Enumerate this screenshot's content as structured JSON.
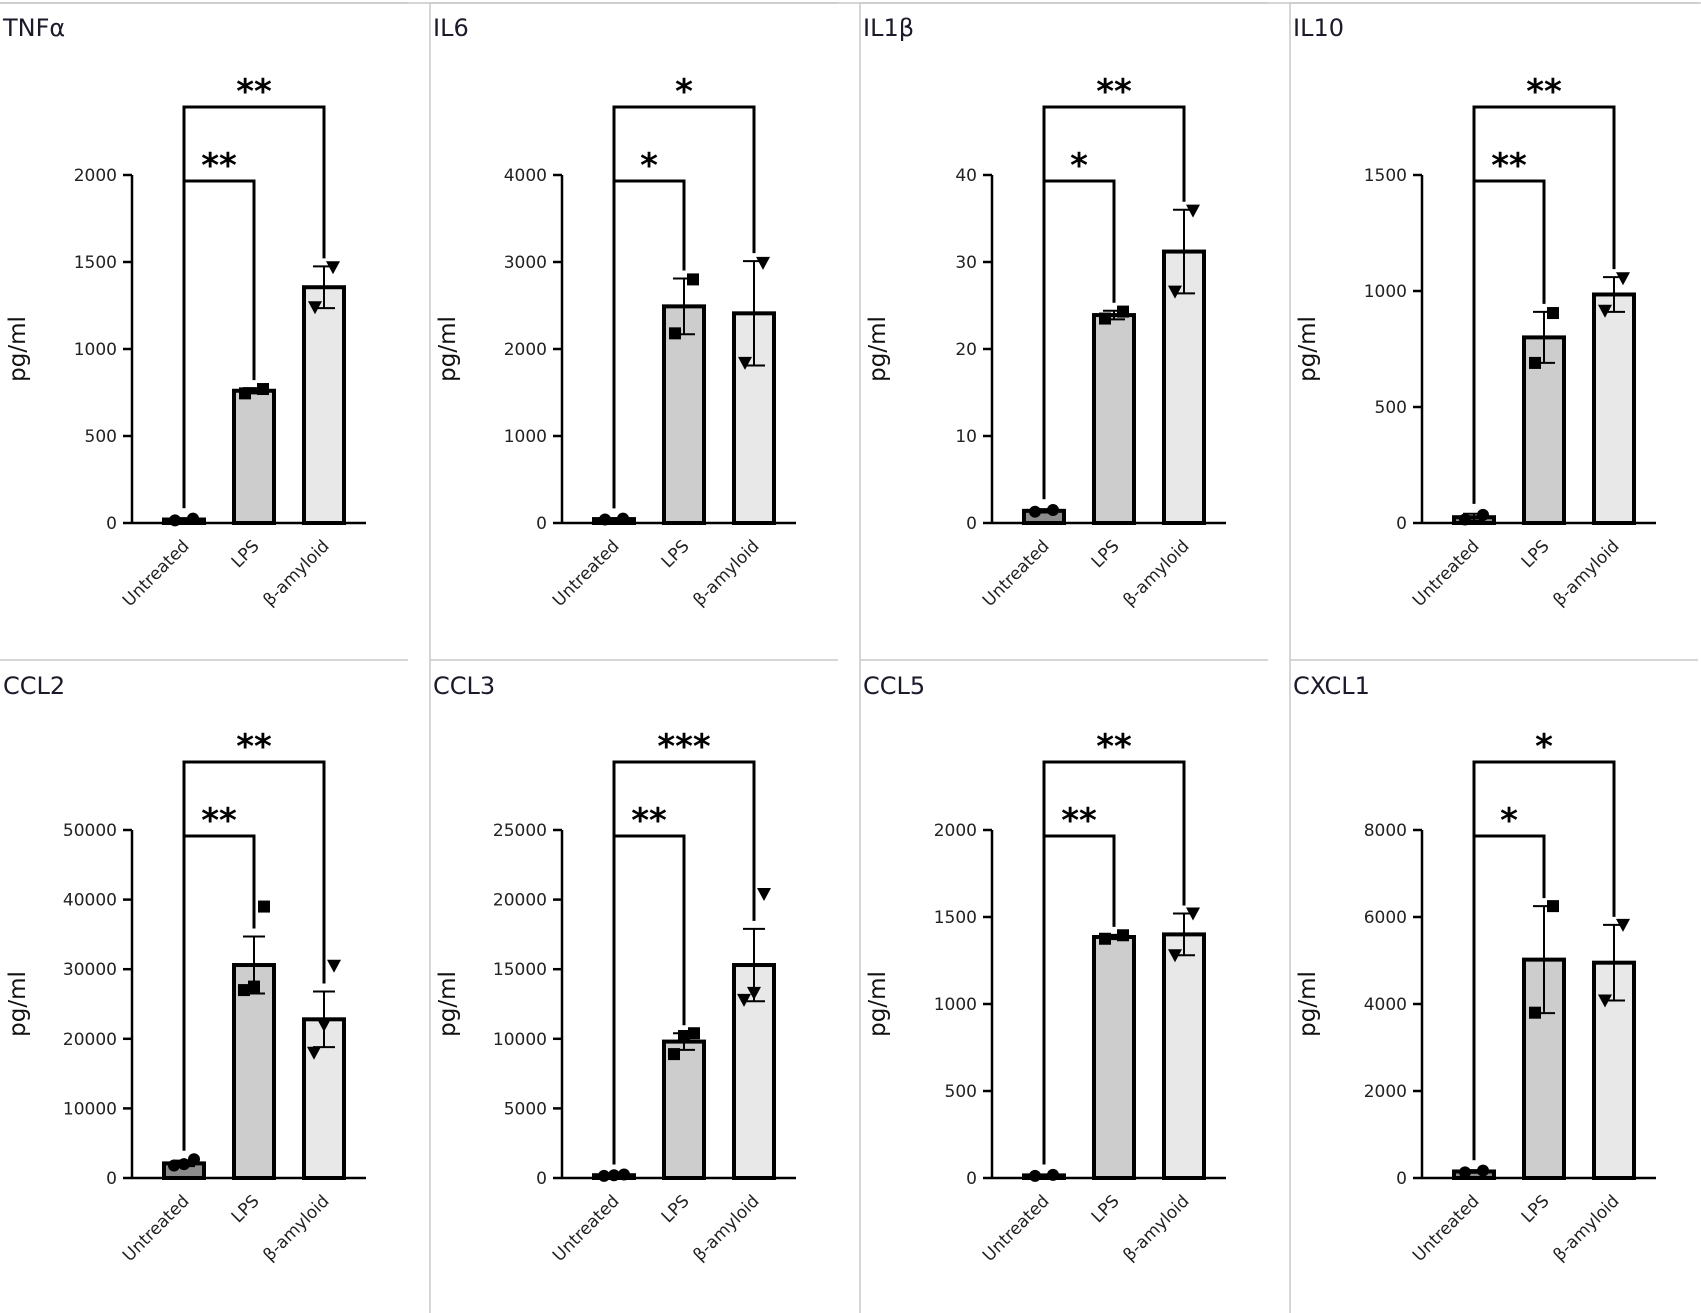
{
  "colors": {
    "untreated": "#8c8c8c",
    "lps": "#cdcdcd",
    "amyloid": "#e8e8e8"
  },
  "chart_data": [
    {
      "type": "bar",
      "title": "TNFα",
      "ylabel": "pg/ml",
      "categories": [
        "Untreated",
        "LPS",
        "β-amyloid"
      ],
      "ylim": [
        0,
        2000
      ],
      "yticks": [
        0,
        500,
        1000,
        1500,
        2000
      ],
      "values": [
        20,
        760,
        1355
      ],
      "errors": [
        8,
        15,
        120
      ],
      "points": [
        [
          15,
          25
        ],
        [
          745,
          770
        ],
        [
          1240,
          1470
        ]
      ],
      "significance": [
        {
          "from": 0,
          "to": 1,
          "label": "**"
        },
        {
          "from": 0,
          "to": 2,
          "label": "**"
        }
      ]
    },
    {
      "type": "bar",
      "title": "IL6",
      "ylabel": "pg/ml",
      "categories": [
        "Untreated",
        "LPS",
        "β-amyloid"
      ],
      "ylim": [
        0,
        4000
      ],
      "yticks": [
        0,
        1000,
        2000,
        3000,
        4000
      ],
      "values": [
        45,
        2490,
        2410
      ],
      "errors": [
        10,
        320,
        600
      ],
      "points": [
        [
          40,
          50
        ],
        [
          2180,
          2800
        ],
        [
          1840,
          2990
        ]
      ],
      "significance": [
        {
          "from": 0,
          "to": 1,
          "label": "*"
        },
        {
          "from": 0,
          "to": 2,
          "label": "*"
        }
      ]
    },
    {
      "type": "bar",
      "title": "IL1β",
      "ylabel": "pg/ml",
      "categories": [
        "Untreated",
        "LPS",
        "β-amyloid"
      ],
      "ylim": [
        0,
        40
      ],
      "yticks": [
        0,
        10,
        20,
        30,
        40
      ],
      "values": [
        1.4,
        23.9,
        31.2
      ],
      "errors": [
        0.2,
        0.5,
        4.8
      ],
      "points": [
        [
          1.3,
          1.5
        ],
        [
          23.5,
          24.3
        ],
        [
          26.6,
          35.9
        ]
      ],
      "significance": [
        {
          "from": 0,
          "to": 1,
          "label": "*"
        },
        {
          "from": 0,
          "to": 2,
          "label": "**"
        }
      ]
    },
    {
      "type": "bar",
      "title": "IL10",
      "ylabel": "pg/ml",
      "categories": [
        "Untreated",
        "LPS",
        "β-amyloid"
      ],
      "ylim": [
        0,
        1500
      ],
      "yticks": [
        0,
        500,
        1000,
        1500
      ],
      "values": [
        25,
        800,
        985
      ],
      "errors": [
        15,
        110,
        75
      ],
      "points": [
        [
          15,
          35
        ],
        [
          690,
          905
        ],
        [
          915,
          1055
        ]
      ],
      "significance": [
        {
          "from": 0,
          "to": 1,
          "label": "**"
        },
        {
          "from": 0,
          "to": 2,
          "label": "**"
        }
      ]
    },
    {
      "type": "bar",
      "title": "CCL2",
      "ylabel": "pg/ml",
      "categories": [
        "Untreated",
        "LPS",
        "β-amyloid"
      ],
      "ylim": [
        0,
        50000
      ],
      "yticks": [
        0,
        10000,
        20000,
        30000,
        40000,
        50000
      ],
      "values": [
        2100,
        30600,
        22800
      ],
      "errors": [
        400,
        4100,
        4000
      ],
      "points": [
        [
          1800,
          2000,
          2700
        ],
        [
          27000,
          27500,
          39000
        ],
        [
          18000,
          22000,
          30500
        ]
      ],
      "significance": [
        {
          "from": 0,
          "to": 1,
          "label": "**"
        },
        {
          "from": 0,
          "to": 2,
          "label": "**"
        }
      ]
    },
    {
      "type": "bar",
      "title": "CCL3",
      "ylabel": "pg/ml",
      "categories": [
        "Untreated",
        "LPS",
        "β-amyloid"
      ],
      "ylim": [
        0,
        25000
      ],
      "yticks": [
        0,
        5000,
        10000,
        15000,
        20000,
        25000
      ],
      "values": [
        200,
        9800,
        15300
      ],
      "errors": [
        50,
        600,
        2600
      ],
      "points": [
        [
          150,
          200,
          250
        ],
        [
          8900,
          10200,
          10400
        ],
        [
          12800,
          13300,
          20400
        ]
      ],
      "significance": [
        {
          "from": 0,
          "to": 1,
          "label": "**"
        },
        {
          "from": 0,
          "to": 2,
          "label": "***"
        }
      ]
    },
    {
      "type": "bar",
      "title": "CCL5",
      "ylabel": "pg/ml",
      "categories": [
        "Untreated",
        "LPS",
        "β-amyloid"
      ],
      "ylim": [
        0,
        2000
      ],
      "yticks": [
        0,
        500,
        1000,
        1500,
        2000
      ],
      "values": [
        15,
        1385,
        1400
      ],
      "errors": [
        5,
        12,
        120
      ],
      "points": [
        [
          12,
          18
        ],
        [
          1375,
          1395
        ],
        [
          1280,
          1520
        ]
      ],
      "significance": [
        {
          "from": 0,
          "to": 1,
          "label": "**"
        },
        {
          "from": 0,
          "to": 2,
          "label": "**"
        }
      ]
    },
    {
      "type": "bar",
      "title": "CXCL1",
      "ylabel": "pg/ml",
      "categories": [
        "Untreated",
        "LPS",
        "β-amyloid"
      ],
      "ylim": [
        0,
        8000
      ],
      "yticks": [
        0,
        2000,
        4000,
        6000,
        8000
      ],
      "values": [
        150,
        5020,
        4950
      ],
      "errors": [
        30,
        1230,
        870
      ],
      "points": [
        [
          130,
          170
        ],
        [
          3800,
          6250
        ],
        [
          4080,
          5820
        ]
      ],
      "significance": [
        {
          "from": 0,
          "to": 1,
          "label": "*"
        },
        {
          "from": 0,
          "to": 2,
          "label": "*"
        }
      ]
    }
  ]
}
